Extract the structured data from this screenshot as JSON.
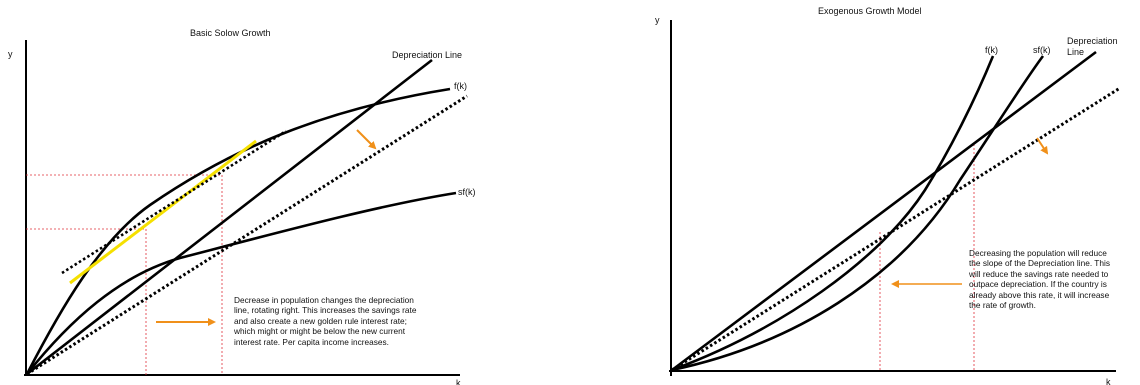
{
  "colors": {
    "curve": "#000000",
    "guide": "#e0303a",
    "arrow": "#f0901a",
    "tangent": "#f5e000"
  },
  "left_panel": {
    "title": "Basic Solow Growth",
    "y_axis_label": "y",
    "x_axis_label": "k",
    "curve_labels": {
      "depreciation": "Depreciation Line",
      "fk": "f(k)",
      "sfk": "sf(k)"
    },
    "note": "Decrease in population changes the depreciation\nline, rotating right. This increases the savings rate\nand also create a new golden rule interest rate;\nwhich might or might be below the new current\ninterest rate. Per capita income increases."
  },
  "right_panel": {
    "title": "Exogenous Growth Model",
    "y_axis_label": "y",
    "x_axis_label": "k",
    "curve_labels": {
      "fk": "f(k)",
      "sfk": "sf(k)",
      "depreciation_line1": "Depreciation",
      "depreciation_line2": "Line"
    },
    "note": "Decreasing the population will reduce\nthe slope of the Depreciation line. This\nwill reduce the savings rate needed to\noutpace depreciation. If the country is\nalready above this rate, it will increase\nthe rate of growth."
  }
}
